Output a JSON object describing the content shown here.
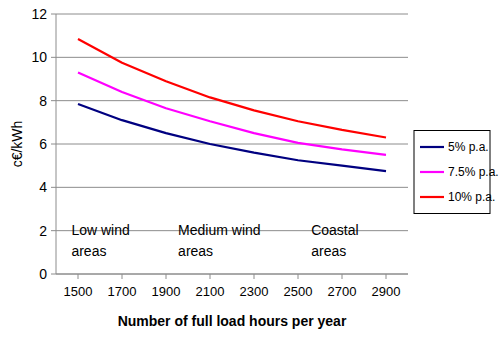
{
  "chart_data": {
    "type": "line",
    "y_label": "c€/kWh",
    "x_label": "Number of full load hours per year",
    "x": [
      1500,
      1700,
      1900,
      2100,
      2300,
      2500,
      2700,
      2900
    ],
    "series": [
      {
        "name": "5% p.a.",
        "color": "#000080",
        "values": [
          7.85,
          7.1,
          6.5,
          6.0,
          5.6,
          5.25,
          5.0,
          4.75
        ]
      },
      {
        "name": "7.5% p.a.",
        "color": "#ff00ff",
        "values": [
          9.3,
          8.4,
          7.65,
          7.05,
          6.5,
          6.05,
          5.75,
          5.5
        ]
      },
      {
        "name": "10% p.a.",
        "color": "#ff0000",
        "values": [
          10.85,
          9.75,
          8.9,
          8.15,
          7.55,
          7.05,
          6.65,
          6.3
        ]
      }
    ],
    "xlim": [
      1400,
      3000
    ],
    "xticks": [
      1500,
      1700,
      1900,
      2100,
      2300,
      2500,
      2700,
      2900
    ],
    "ylim": [
      0,
      12
    ],
    "yticks": [
      0,
      2,
      4,
      6,
      8,
      10,
      12
    ],
    "grid": true,
    "legend": "right",
    "annotations": [
      {
        "text": [
          "Low wind",
          "areas"
        ],
        "x": 1470,
        "y": 0.85
      },
      {
        "text": [
          "Medium wind",
          "areas"
        ],
        "x": 1955,
        "y": 0.85
      },
      {
        "text": [
          "Coastal",
          "areas"
        ],
        "x": 2560,
        "y": 0.85
      }
    ]
  }
}
